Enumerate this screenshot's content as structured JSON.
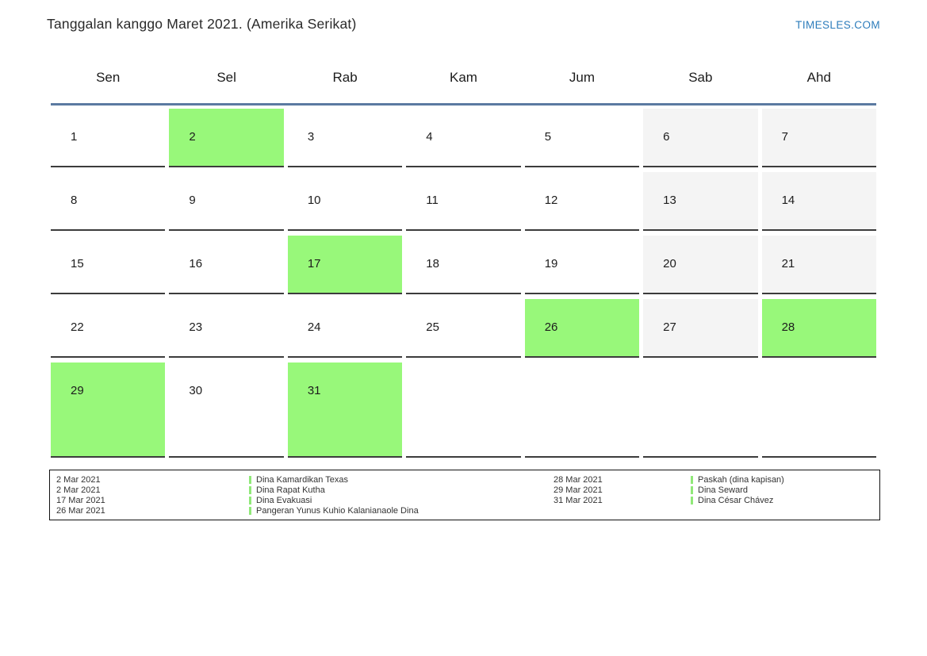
{
  "header": {
    "title": "Tanggalan kanggo Maret 2021. (Amerika Serikat)",
    "site": "TIMESLES.COM"
  },
  "colors": {
    "highlight_green": "#98f87a",
    "weekend_gray": "#f4f4f4",
    "header_rule_blue": "#5b7aa1",
    "cell_border": "#3c3c3c",
    "link_blue": "#2c7cbb"
  },
  "calendar": {
    "weekdays": [
      "Sen",
      "Sel",
      "Rab",
      "Kam",
      "Jum",
      "Sab",
      "Ahd"
    ],
    "weeks": [
      [
        {
          "day": "1"
        },
        {
          "day": "2",
          "highlight": true
        },
        {
          "day": "3"
        },
        {
          "day": "4"
        },
        {
          "day": "5"
        },
        {
          "day": "6",
          "weekend": true
        },
        {
          "day": "7",
          "weekend": true
        }
      ],
      [
        {
          "day": "8"
        },
        {
          "day": "9"
        },
        {
          "day": "10"
        },
        {
          "day": "11"
        },
        {
          "day": "12"
        },
        {
          "day": "13",
          "weekend": true
        },
        {
          "day": "14",
          "weekend": true
        }
      ],
      [
        {
          "day": "15"
        },
        {
          "day": "16"
        },
        {
          "day": "17",
          "highlight": true
        },
        {
          "day": "18"
        },
        {
          "day": "19"
        },
        {
          "day": "20",
          "weekend": true
        },
        {
          "day": "21",
          "weekend": true
        }
      ],
      [
        {
          "day": "22"
        },
        {
          "day": "23"
        },
        {
          "day": "24"
        },
        {
          "day": "25"
        },
        {
          "day": "26",
          "highlight": true
        },
        {
          "day": "27",
          "weekend": true
        },
        {
          "day": "28",
          "highlight": true
        }
      ],
      [
        {
          "day": "29",
          "highlight": true
        },
        {
          "day": "30"
        },
        {
          "day": "31",
          "highlight": true
        },
        {
          "day": ""
        },
        {
          "day": ""
        },
        {
          "day": ""
        },
        {
          "day": ""
        }
      ]
    ]
  },
  "legend": {
    "rows": [
      {
        "date1": "2 Mar 2021",
        "event1": "Dina Kamardikan Texas",
        "date2": "28 Mar 2021",
        "event2": "Paskah (dina kapisan)"
      },
      {
        "date1": "2 Mar 2021",
        "event1": "Dina Rapat Kutha",
        "date2": "29 Mar 2021",
        "event2": "Dina Seward"
      },
      {
        "date1": "17 Mar 2021",
        "event1": "Dina Evakuasi",
        "date2": "31 Mar 2021",
        "event2": "Dina César Chávez"
      },
      {
        "date1": "26 Mar 2021",
        "event1": "Pangeran Yunus Kuhio Kalanianaole Dina",
        "date2": "",
        "event2": ""
      }
    ]
  }
}
